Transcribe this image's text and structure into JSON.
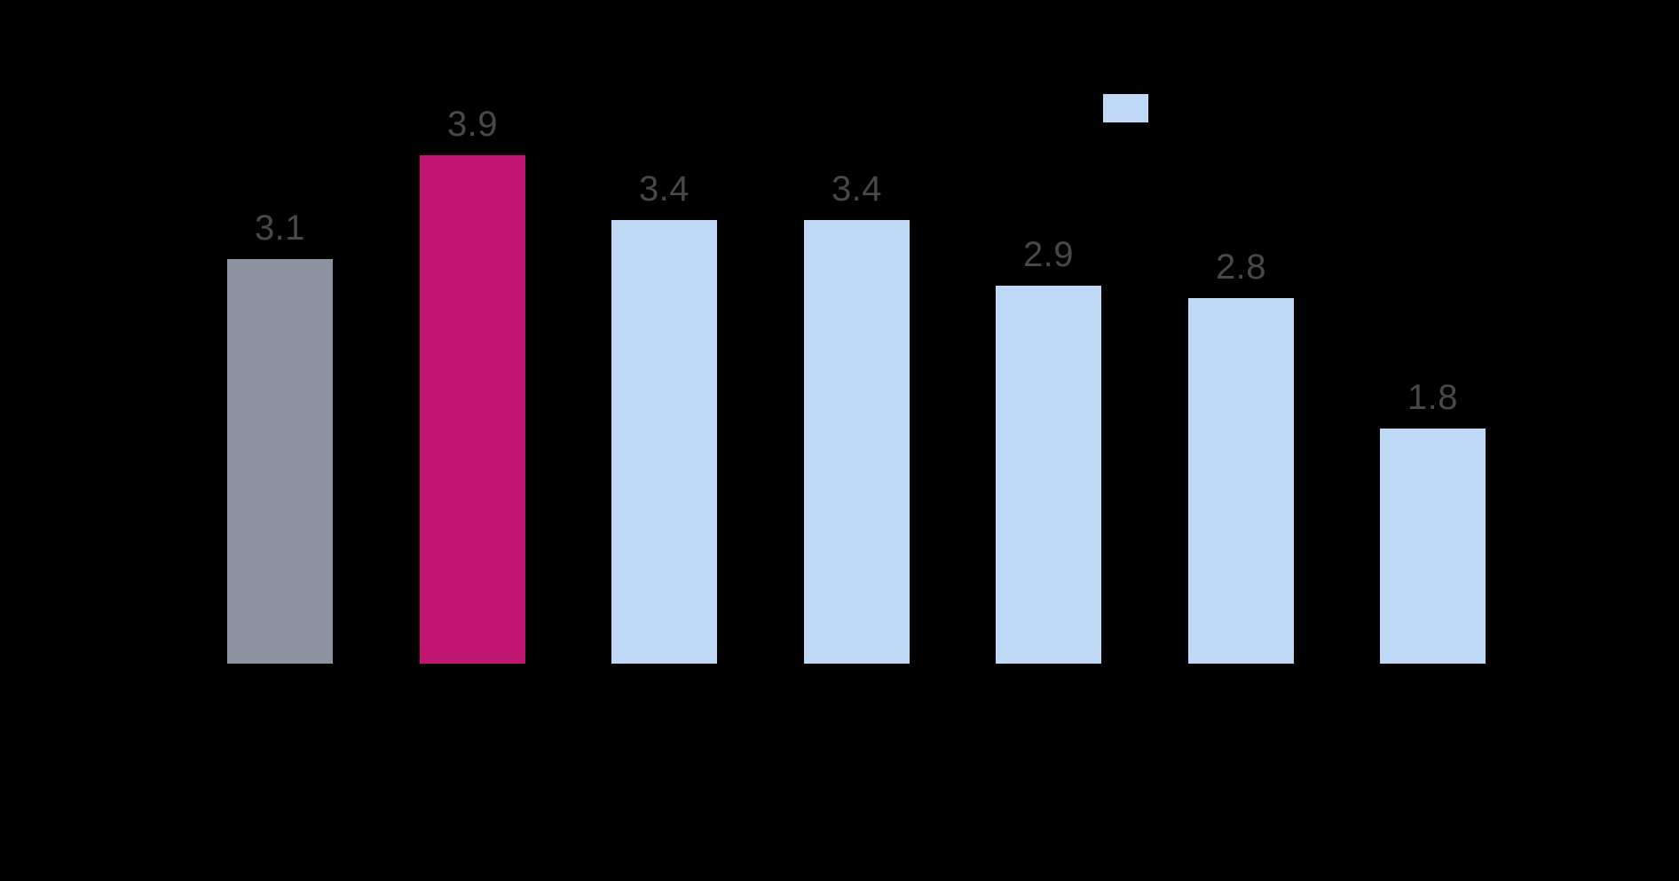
{
  "chart_data": {
    "type": "bar",
    "categories": [
      "",
      "",
      "",
      "",
      "",
      "",
      ""
    ],
    "values": [
      3.1,
      3.9,
      3.4,
      3.4,
      2.9,
      2.8,
      1.8
    ],
    "labels": [
      "3.1",
      "3.9",
      "3.4",
      "3.4",
      "2.9",
      "2.8",
      "1.8"
    ],
    "bar_colors": [
      "#8D92A0",
      "#C01570",
      "#BFD8F6",
      "#BFD8F6",
      "#BFD8F6",
      "#BFD8F6",
      "#BFD8F6"
    ],
    "label_color": "#48484A",
    "background_color": "#000000",
    "ylim": [
      0,
      4.5
    ],
    "grid": false,
    "legend": {
      "position": "top-right",
      "swatch_color": "#BFD8F6",
      "label": ""
    },
    "title": "",
    "xlabel": "",
    "ylabel": ""
  }
}
